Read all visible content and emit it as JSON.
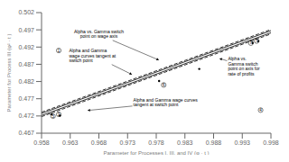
{
  "chart_data": {
    "type": "line",
    "xlabel": "Parameter for Processes I, III, and IV (φ · t )",
    "ylabel": "Parameter for Process III (φ² · t )",
    "xlim": [
      0.958,
      0.998
    ],
    "ylim": [
      0.467,
      0.502
    ],
    "xticks": [
      0.958,
      0.963,
      0.968,
      0.973,
      0.978,
      0.983,
      0.988,
      0.993,
      0.998
    ],
    "yticks": [
      0.467,
      0.472,
      0.477,
      0.482,
      0.487,
      0.492,
      0.497,
      0.502
    ],
    "grid": false,
    "x": [
      0.958,
      0.998
    ],
    "series": [
      {
        "color": "#333333",
        "line_style": "solid",
        "values": [
          0.47215,
          0.49615
        ]
      },
      {
        "color": "#333333",
        "line_style": "solid",
        "values": [
          0.47275,
          0.49675
        ]
      },
      {
        "color": "#333333",
        "line_style": "dashed",
        "values": [
          0.4718,
          0.4958
        ]
      },
      {
        "color": "#333333",
        "line_style": "dashed",
        "values": [
          0.4731,
          0.4971
        ]
      },
      {
        "type": "scatter",
        "color": "#000000",
        "marker": "circle",
        "x": [
          0.9597,
          0.9612,
          0.9785,
          0.9855,
          0.9948,
          0.9958
        ],
        "values": [
          0.47248,
          0.4721,
          0.48215,
          0.48565,
          0.4932,
          0.4937
        ]
      }
    ],
    "annotations": [
      {
        "text": "1",
        "x": 0.961,
        "y": 0.491,
        "marker": "circle"
      },
      {
        "text": "3",
        "x": 0.961,
        "y": 0.47248,
        "marker": "circle"
      },
      {
        "text": "4",
        "x": 0.9962,
        "y": 0.4737,
        "marker": "circle"
      },
      {
        "text": "5",
        "x": 0.96,
        "y": 0.47195,
        "marker": "circle"
      },
      {
        "text": "6",
        "x": 0.9793,
        "y": 0.481,
        "marker": "circle"
      },
      {
        "text": "7",
        "x": 0.9955,
        "y": 0.49375,
        "marker": "circle"
      },
      {
        "text": "7",
        "x": 0.9945,
        "y": 0.49315,
        "marker": "circle"
      },
      {
        "text": "Alpha vs. Gamma switch\npoint on wage axis",
        "x": 0.9785,
        "y": 0.4882,
        "text_x": 0.968,
        "text_y": 0.4942
      },
      {
        "text": "Alpha and Gamma\nwage curves tangent at\nswitch point",
        "x": 0.9738,
        "y": 0.484,
        "text_x": 0.9628,
        "text_y": 0.4915
      },
      {
        "text": "Alpha vs.\nGamma switch\npoint on axis for\nrate of profits",
        "x": 0.989,
        "y": 0.4887,
        "text_x": 0.9905,
        "text_y": 0.4862
      },
      {
        "text": "Alpha and Gamma wage curves\ntangent at switch point",
        "x": 0.966,
        "y": 0.4736,
        "text_x": 0.974,
        "text_y": 0.4758
      }
    ]
  }
}
